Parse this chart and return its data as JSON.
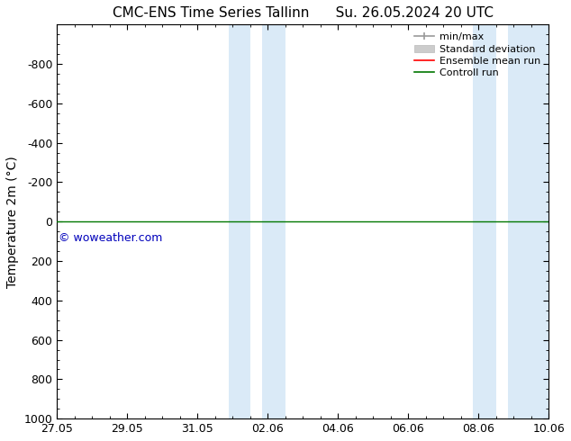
{
  "title_left": "CMC-ENS Time Series Tallinn",
  "title_right": "Su. 26.05.2024 20 UTC",
  "ylabel": "Temperature 2m (°C)",
  "xtick_labels": [
    "27.05",
    "29.05",
    "31.05",
    "02.06",
    "04.06",
    "06.06",
    "08.06",
    "10.06"
  ],
  "xtick_pos": [
    0,
    2,
    4,
    6,
    8,
    10,
    12,
    14
  ],
  "xlim": [
    0,
    14
  ],
  "ylim": [
    1000,
    -1000
  ],
  "yticks": [
    -800,
    -600,
    -400,
    -200,
    0,
    200,
    400,
    600,
    800,
    1000
  ],
  "shaded_color": "#daeaf7",
  "shaded_regions": [
    [
      4.9,
      5.5
    ],
    [
      5.85,
      6.5
    ],
    [
      11.85,
      12.5
    ],
    [
      12.85,
      14.0
    ]
  ],
  "line_y": 0,
  "control_run_color": "#007700",
  "ensemble_mean_color": "#ff0000",
  "minmax_color": "#999999",
  "stddev_color": "#cccccc",
  "watermark": "© woweather.com",
  "watermark_color": "#0000bb",
  "background_color": "#ffffff",
  "legend_labels": [
    "min/max",
    "Standard deviation",
    "Ensemble mean run",
    "Controll run"
  ],
  "legend_colors": [
    "#999999",
    "#cccccc",
    "#ff0000",
    "#007700"
  ],
  "title_fontsize": 11,
  "axis_label_fontsize": 10,
  "tick_fontsize": 9,
  "legend_fontsize": 8
}
